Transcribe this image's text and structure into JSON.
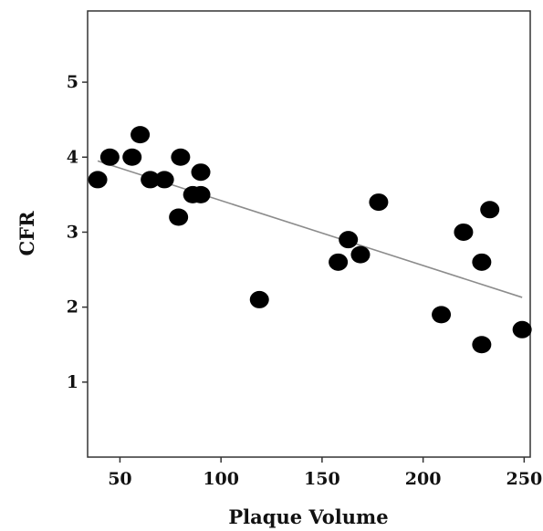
{
  "chart_data": {
    "type": "scatter",
    "title": "",
    "xlabel": "Plaque Volume",
    "ylabel": "CFR",
    "xlim": [
      34,
      253
    ],
    "ylim": [
      0,
      5.95
    ],
    "xticks": [
      50,
      100,
      150,
      200,
      250
    ],
    "yticks": [
      1,
      2,
      3,
      4,
      5
    ],
    "grid": false,
    "legend": "none",
    "colors": {
      "points": "#000000",
      "fit_line": "#8c8c8c",
      "frame": "#333333"
    },
    "series": [
      {
        "points": [
          {
            "x": 39,
            "y": 3.7
          },
          {
            "x": 45,
            "y": 4.0
          },
          {
            "x": 56,
            "y": 4.0
          },
          {
            "x": 60,
            "y": 4.3
          },
          {
            "x": 65,
            "y": 3.7
          },
          {
            "x": 72,
            "y": 3.7
          },
          {
            "x": 79,
            "y": 3.2
          },
          {
            "x": 80,
            "y": 4.0
          },
          {
            "x": 86,
            "y": 3.5
          },
          {
            "x": 90,
            "y": 3.8
          },
          {
            "x": 90,
            "y": 3.5
          },
          {
            "x": 119,
            "y": 2.1
          },
          {
            "x": 158,
            "y": 2.6
          },
          {
            "x": 163,
            "y": 2.9
          },
          {
            "x": 169,
            "y": 2.7
          },
          {
            "x": 178,
            "y": 3.4
          },
          {
            "x": 209,
            "y": 1.9
          },
          {
            "x": 220,
            "y": 3.0
          },
          {
            "x": 229,
            "y": 2.6
          },
          {
            "x": 229,
            "y": 1.5
          },
          {
            "x": 233,
            "y": 3.3
          },
          {
            "x": 249,
            "y": 1.7
          }
        ]
      }
    ],
    "fit_line": {
      "x": [
        39,
        249
      ],
      "y": [
        3.95,
        2.13
      ]
    }
  }
}
